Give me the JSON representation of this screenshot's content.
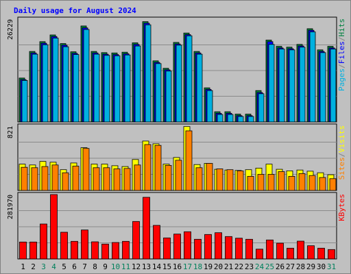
{
  "chart_data": {
    "type": "bar",
    "title": "Daily usage for August 2024",
    "categories": [
      "1",
      "2",
      "3",
      "4",
      "5",
      "6",
      "7",
      "8",
      "9",
      "10",
      "11",
      "12",
      "13",
      "14",
      "15",
      "16",
      "17",
      "18",
      "19",
      "20",
      "21",
      "22",
      "23",
      "24",
      "25",
      "26",
      "27",
      "28",
      "29",
      "30",
      "31"
    ],
    "weekend_days": [
      "3",
      "4",
      "10",
      "11",
      "17",
      "18",
      "24",
      "25",
      "31"
    ],
    "panels": [
      {
        "id": "hits",
        "scale_label": "26229",
        "scale_max": 26229,
        "ylabels": [
          {
            "text": "Pages",
            "color": "#00b0e0"
          },
          {
            "text": "/",
            "color": "#808080"
          },
          {
            "text": "Files",
            "color": "#0000ff"
          },
          {
            "text": "/",
            "color": "#808080"
          },
          {
            "text": "Hits",
            "color": "#008040"
          }
        ],
        "series": [
          {
            "name": "Hits",
            "color": "#008040",
            "values": [
              11200,
              18000,
              20500,
              22200,
              20000,
              17900,
              24500,
              18000,
              17700,
              17600,
              17800,
              20200,
              25600,
              15600,
              13700,
              20300,
              22700,
              18000,
              8700,
              2600,
              2600,
              2000,
              2000,
              8000,
              20900,
              19300,
              19100,
              19800,
              23800,
              18400,
              19300
            ]
          },
          {
            "name": "Files",
            "color": "#0000ff",
            "values": [
              10800,
              17600,
              20100,
              21800,
              19600,
              17500,
              24000,
              17600,
              17300,
              17200,
              17400,
              19800,
              25200,
              15200,
              13300,
              19900,
              22300,
              17600,
              8300,
              2200,
              2200,
              1600,
              1600,
              7500,
              20500,
              18900,
              18700,
              19400,
              23400,
              18000,
              18900
            ]
          },
          {
            "name": "Pages",
            "color": "#00b0e0",
            "values": [
              10600,
              17300,
              19700,
              21400,
              19200,
              17200,
              23600,
              17300,
              17000,
              16900,
              17100,
              19400,
              24800,
              14900,
              13000,
              19600,
              22000,
              17300,
              8000,
              1900,
              1900,
              1400,
              1400,
              7200,
              19800,
              18600,
              18400,
              19100,
              23000,
              17700,
              18600
            ]
          }
        ]
      },
      {
        "id": "visits",
        "scale_label": "821",
        "scale_max": 821,
        "ylabels": [
          {
            "text": "Sites",
            "color": "#ff8000"
          },
          {
            "text": "/",
            "color": "#808080"
          },
          {
            "text": "Visits",
            "color": "#ffff00"
          }
        ],
        "series": [
          {
            "name": "Visits",
            "color": "#ffff00",
            "values": [
              335,
              325,
              370,
              360,
              265,
              350,
              545,
              335,
              335,
              315,
              305,
              395,
              630,
              595,
              335,
              420,
              815,
              330,
              345,
              270,
              260,
              255,
              265,
              285,
              335,
              270,
              250,
              260,
              245,
              225,
              200
            ]
          },
          {
            "name": "Sites",
            "color": "#ff8000",
            "values": [
              295,
              290,
              305,
              325,
              225,
              310,
              535,
              290,
              290,
              275,
              280,
              325,
              585,
              575,
              320,
              385,
              760,
              290,
              345,
              275,
              265,
              250,
              180,
              205,
              205,
              240,
              180,
              215,
              190,
              165,
              150
            ]
          }
        ]
      },
      {
        "id": "kbytes",
        "scale_label": "281970",
        "scale_max": 281970,
        "ylabels": [
          {
            "text": "KBytes",
            "color": "#ff0000"
          }
        ],
        "series": [
          {
            "name": "KBytes",
            "color": "#ff0000",
            "values": [
              74000,
              74000,
              153000,
              282000,
              117000,
              77000,
              127000,
              75000,
              65000,
              72000,
              77000,
              164000,
              270000,
              147000,
              92000,
              109000,
              119000,
              86000,
              107000,
              115000,
              98000,
              91000,
              86000,
              43000,
              83000,
              69000,
              47000,
              78000,
              58000,
              47000,
              41000
            ]
          }
        ]
      }
    ]
  },
  "colors": {
    "background": "#c0c0c0",
    "plot_background": "#c0c0c0",
    "title": "#0000ff",
    "scale_text": "#000000",
    "weekday_text": "#000000",
    "weekend_text": "#00805c"
  }
}
